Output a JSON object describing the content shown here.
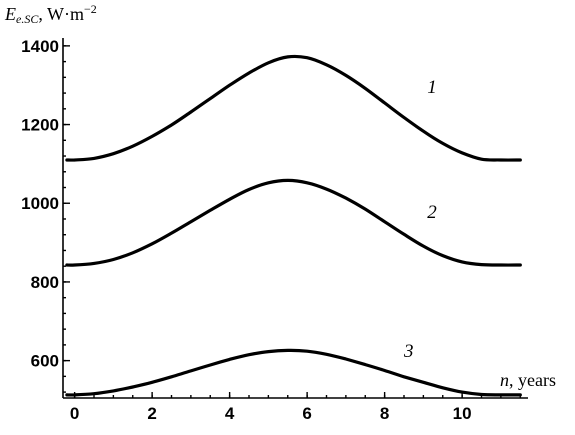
{
  "chart_data": {
    "type": "line",
    "ylabel": {
      "main": "E",
      "sub": "e.SC",
      "rest": ", W·m",
      "sup": "−2"
    },
    "xlabel": {
      "var": "n",
      "rest": ", years"
    },
    "xlim": [
      -0.3,
      11.7
    ],
    "ylim": [
      505,
      1420
    ],
    "x_ticks": [
      "0",
      "2",
      "4",
      "6",
      "8",
      "10"
    ],
    "y_ticks": [
      "600",
      "800",
      "1000",
      "1200",
      "1400"
    ],
    "grid": false,
    "series": [
      {
        "label": "1",
        "label_pos": [
          9.1,
          1280
        ],
        "x": [
          -0.2,
          0,
          0.5,
          1,
          1.5,
          2,
          2.5,
          3,
          3.5,
          4,
          4.5,
          5,
          5.5,
          6,
          6.5,
          7,
          7.5,
          8,
          8.5,
          9,
          9.5,
          10,
          10.5,
          11,
          11.5
        ],
        "y": [
          1110,
          1110,
          1114,
          1126,
          1145,
          1170,
          1199,
          1232,
          1266,
          1300,
          1331,
          1357,
          1372,
          1370,
          1352,
          1325,
          1292,
          1255,
          1218,
          1183,
          1152,
          1128,
          1112,
          1110,
          1110
        ]
      },
      {
        "label": "2",
        "label_pos": [
          9.1,
          962
        ],
        "x": [
          -0.2,
          0,
          0.5,
          1,
          1.5,
          2,
          2.5,
          3,
          3.5,
          4,
          4.5,
          5,
          5.5,
          6,
          6.5,
          7,
          7.5,
          8,
          8.5,
          9,
          9.5,
          10,
          10.5,
          11,
          11.5
        ],
        "y": [
          843,
          843,
          847,
          857,
          874,
          897,
          924,
          953,
          982,
          1010,
          1035,
          1052,
          1058,
          1052,
          1036,
          1013,
          985,
          953,
          921,
          891,
          867,
          851,
          844,
          843,
          843
        ]
      },
      {
        "label": "3",
        "label_pos": [
          8.5,
          609
        ],
        "x": [
          -0.2,
          0,
          0.5,
          1,
          1.5,
          2,
          2.5,
          3,
          3.5,
          4,
          4.5,
          5,
          5.5,
          6,
          6.5,
          7,
          7.5,
          8,
          8.5,
          9,
          9.5,
          10,
          10.5,
          11,
          11.5
        ],
        "y": [
          513,
          513,
          516,
          523,
          533,
          545,
          559,
          574,
          589,
          603,
          615,
          623,
          626,
          624,
          616,
          604,
          590,
          575,
          559,
          545,
          531,
          520,
          514,
          513,
          513
        ]
      }
    ]
  }
}
